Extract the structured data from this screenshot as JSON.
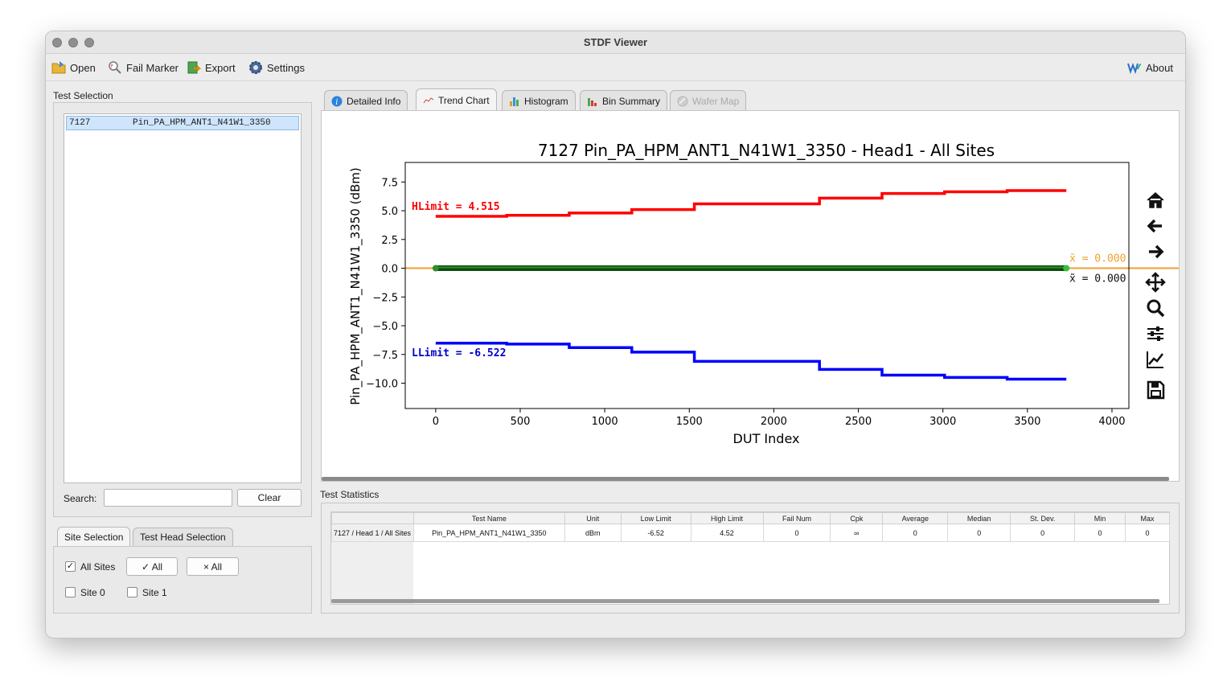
{
  "window": {
    "title": "STDF Viewer"
  },
  "toolbar": {
    "open_label": "Open",
    "fail_marker_label": "Fail Marker",
    "export_label": "Export",
    "settings_label": "Settings",
    "about_label": "About"
  },
  "test_selection": {
    "group_label": "Test Selection",
    "items": [
      {
        "number": "7127",
        "name": "Pin_PA_HPM_ANT1_N41W1_3350"
      }
    ],
    "search_label": "Search:",
    "search_value": "",
    "clear_label": "Clear"
  },
  "site_tabs": {
    "site_selection": "Site Selection",
    "test_head_selection": "Test Head Selection"
  },
  "sites": {
    "all_sites_label": "All Sites",
    "all_sites_checked": "✓",
    "select_all_label": "✓ All",
    "deselect_all_label": "× All",
    "site0_label": "Site 0",
    "site1_label": "Site 1"
  },
  "main_tabs": {
    "detailed_info": "Detailed Info",
    "trend_chart": "Trend Chart",
    "histogram": "Histogram",
    "bin_summary": "Bin Summary",
    "wafer_map": "Wafer Map"
  },
  "chart_data": {
    "type": "line",
    "title": "7127 Pin_PA_HPM_ANT1_N41W1_3350 - Head1 - All Sites",
    "xlabel": "DUT Index",
    "ylabel": "Pin_PA_HPM_ANT1_N41W1_3350 (dBm)",
    "xlim": [
      -180,
      4100
    ],
    "ylim": [
      -12.2,
      9.2
    ],
    "x_ticks": [
      0,
      500,
      1000,
      1500,
      2000,
      2500,
      3000,
      3500,
      4000
    ],
    "y_ticks": [
      7.5,
      5.0,
      2.5,
      0.0,
      -2.5,
      -5.0,
      -7.5,
      -10.0
    ],
    "x_tick_labels": [
      "0",
      "500",
      "1000",
      "1500",
      "2000",
      "2500",
      "3000",
      "3500",
      "4000"
    ],
    "y_tick_labels": [
      "7.5",
      "5.0",
      "2.5",
      "0.0",
      "−2.5",
      "−5.0",
      "−7.5",
      "−10.0"
    ],
    "series": [
      {
        "color": "#ff0000",
        "x": [
          0,
          420,
          420,
          790,
          790,
          1160,
          1160,
          1530,
          1530,
          2270,
          2270,
          2640,
          2640,
          3010,
          3010,
          3380,
          3380,
          3730
        ],
        "y": [
          4.515,
          4.515,
          4.6,
          4.6,
          4.8,
          4.8,
          5.1,
          5.1,
          5.6,
          5.6,
          6.1,
          6.1,
          6.5,
          6.5,
          6.65,
          6.65,
          6.75,
          6.75
        ]
      },
      {
        "color": "#0000ff",
        "x": [
          0,
          420,
          420,
          790,
          790,
          1160,
          1160,
          1530,
          1530,
          2270,
          2270,
          2640,
          2640,
          3010,
          3010,
          3380,
          3380,
          3730
        ],
        "y": [
          -6.522,
          -6.522,
          -6.6,
          -6.6,
          -6.9,
          -6.9,
          -7.3,
          -7.3,
          -8.1,
          -8.1,
          -8.8,
          -8.8,
          -9.3,
          -9.3,
          -9.5,
          -9.5,
          -9.65,
          -9.65
        ]
      },
      {
        "color": "#0e4d0e",
        "x": [
          0,
          3730
        ],
        "y": [
          0.0,
          0.0
        ]
      }
    ],
    "mean_line": {
      "y": 0.0,
      "color": "#f0a030",
      "label": "x̄ = 0.000"
    },
    "median_label": "x̃ = 0.000",
    "annotations": {
      "hlimit": "HLimit = 4.515",
      "llimit": "LLimit = -6.522"
    },
    "grid": false
  },
  "stats": {
    "group_label": "Test Statistics",
    "columns": [
      "Test Name",
      "Unit",
      "Low Limit",
      "High Limit",
      "Fail Num",
      "Cpk",
      "Average",
      "Median",
      "St. Dev.",
      "Min",
      "Max"
    ],
    "rows": [
      {
        "header": "7127 / Head 1 / All Sites",
        "cells": [
          "Pin_PA_HPM_ANT1_N41W1_3350",
          "dBm",
          "-6.52",
          "4.52",
          "0",
          "∞",
          "0",
          "0",
          "0",
          "0",
          "0"
        ]
      }
    ]
  }
}
